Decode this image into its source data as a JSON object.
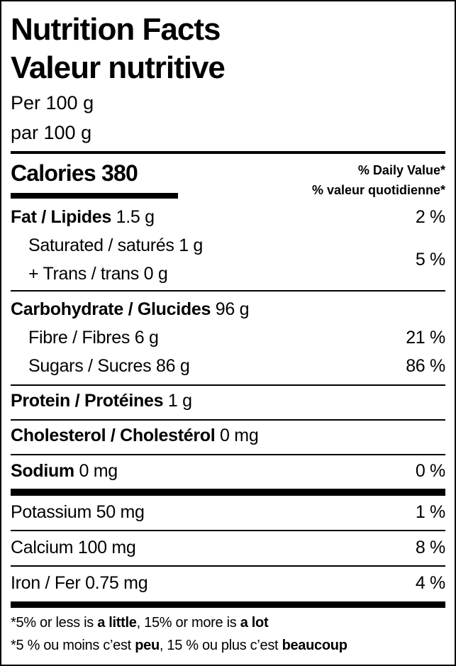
{
  "title_en": "Nutrition Facts",
  "title_fr": "Valeur nutritive",
  "serving_en": "Per 100 g",
  "serving_fr": "par 100 g",
  "calories": {
    "label": "Calories",
    "value": "380"
  },
  "dv_header_en": "% Daily Value*",
  "dv_header_fr": "% valeur quotidienne*",
  "rows": {
    "fat": {
      "label": "Fat / Lipides",
      "amount": "1.5 g",
      "dv": "2 %"
    },
    "saturated": {
      "label": "Saturated / saturés",
      "amount": "1 g"
    },
    "trans": {
      "label": "+ Trans / trans",
      "amount": "0 g"
    },
    "sat_trans_dv": "5 %",
    "carb": {
      "label": "Carbohydrate / Glucides",
      "amount": "96 g"
    },
    "fibre": {
      "label": "Fibre / Fibres",
      "amount": "6 g",
      "dv": "21 %"
    },
    "sugars": {
      "label": "Sugars / Sucres",
      "amount": "86 g",
      "dv": "86 %"
    },
    "protein": {
      "label": "Protein / Protéines",
      "amount": "1 g"
    },
    "cholesterol": {
      "label": "Cholesterol / Cholestérol",
      "amount": "0 mg"
    },
    "sodium": {
      "label": "Sodium",
      "amount": "0 mg",
      "dv": "0 %"
    },
    "potassium": {
      "label": "Potassium",
      "amount": "50 mg",
      "dv": "1 %"
    },
    "calcium": {
      "label": "Calcium",
      "amount": "100 mg",
      "dv": "8 %"
    },
    "iron": {
      "label": "Iron / Fer",
      "amount": "0.75 mg",
      "dv": "4 %"
    }
  },
  "footnote_en": {
    "a": "*5% or less is ",
    "b": "a little",
    "c": ", 15% or more is ",
    "d": "a lot"
  },
  "footnote_fr": {
    "a": "*5 % ou moins c’est ",
    "b": "peu",
    "c": ", 15 % ou plus c’est ",
    "d": "beaucoup"
  }
}
